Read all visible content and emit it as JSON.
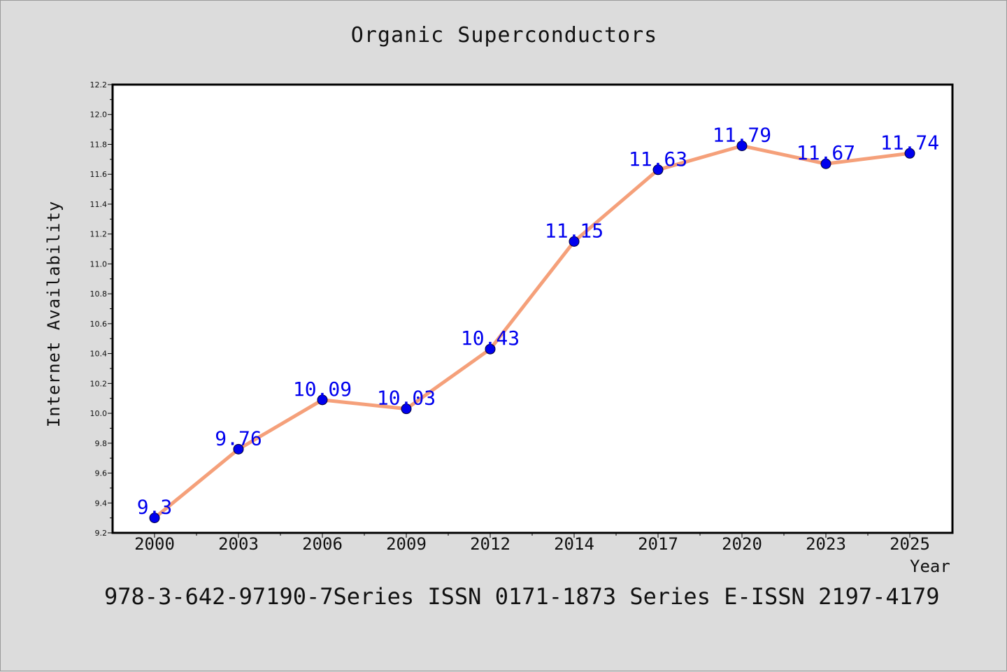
{
  "chart_data": {
    "type": "line",
    "title": "Organic Superconductors",
    "xlabel": "Year",
    "ylabel": "Internet Availability",
    "categories": [
      "2000",
      "2003",
      "2006",
      "2009",
      "2012",
      "2014",
      "2017",
      "2020",
      "2023",
      "2025"
    ],
    "series": [
      {
        "values": [
          9.3,
          9.76,
          10.09,
          10.03,
          10.43,
          11.15,
          11.63,
          11.79,
          11.67,
          11.74
        ],
        "data_labels": [
          "9.3",
          "9.76",
          "10.09",
          "10.03",
          "10.43",
          "11.15",
          "11.63",
          "11.79",
          "11.67",
          "11.74"
        ],
        "line_color": "#f5a07a",
        "marker_color": "#0000ee",
        "label_color": "#0000ee"
      }
    ],
    "ylim": [
      9.2,
      12.2
    ],
    "yticks": [
      "9.2",
      "9.4",
      "9.6",
      "9.8",
      "10.0",
      "10.2",
      "10.4",
      "10.6",
      "10.8",
      "11.0",
      "11.2",
      "11.4",
      "11.6",
      "11.8",
      "12.0",
      "12.2"
    ],
    "grid": false,
    "legend": "none"
  },
  "footer": {
    "text": "978-3-642-97190-7Series ISSN 0171-1873 Series E-ISSN 2197-4179"
  },
  "colors": {
    "background": "#dcdcdc",
    "plot_background": "#ffffff"
  }
}
